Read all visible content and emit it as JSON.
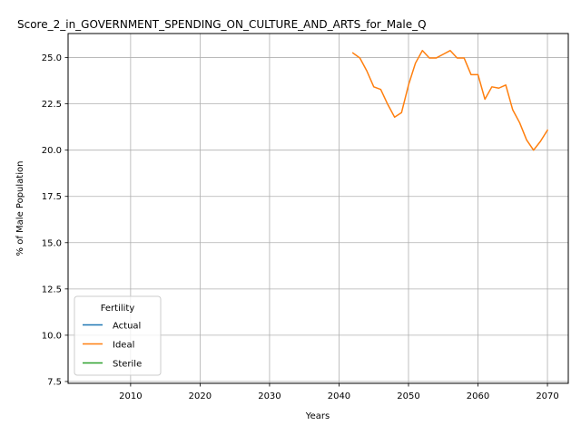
{
  "chart_data": {
    "type": "line",
    "title": "Score_2_in_GOVERNMENT_SPENDING_ON_CULTURE_AND_ARTS_for_Male_Q",
    "xlabel": "Years",
    "ylabel": "% of Male Population",
    "xlim": [
      2001,
      2073
    ],
    "ylim": [
      7.4,
      26.3
    ],
    "xticks": [
      2010,
      2020,
      2030,
      2040,
      2050,
      2060,
      2070
    ],
    "yticks": [
      "7.5",
      "10.0",
      "12.5",
      "15.0",
      "17.5",
      "20.0",
      "22.5",
      "25.0"
    ],
    "grid": true,
    "legend": {
      "title": "Fertility",
      "position": "lower-left",
      "entries": [
        "Actual",
        "Ideal",
        "Sterile"
      ]
    },
    "series": [
      {
        "name": "Actual",
        "color": "#1f77b4",
        "x": [],
        "y": []
      },
      {
        "name": "Ideal",
        "color": "#ff7f0e",
        "x": [
          2042,
          2043,
          2044,
          2045,
          2046,
          2047,
          2048,
          2049,
          2050,
          2051,
          2052,
          2053,
          2054,
          2055,
          2056,
          2057,
          2058,
          2059,
          2060,
          2061,
          2062,
          2063,
          2064,
          2065,
          2066,
          2067,
          2068,
          2069,
          2070
        ],
        "y": [
          25.25,
          24.98,
          24.28,
          23.42,
          23.28,
          22.48,
          21.78,
          22.03,
          23.52,
          24.7,
          25.38,
          24.98,
          24.98,
          25.18,
          25.38,
          24.98,
          24.98,
          24.08,
          24.08,
          22.75,
          23.42,
          23.35,
          23.52,
          22.18,
          21.48,
          20.55,
          20.0,
          20.48,
          21.08
        ]
      },
      {
        "name": "Sterile",
        "color": "#2ca02c",
        "x": [],
        "y": []
      }
    ]
  }
}
